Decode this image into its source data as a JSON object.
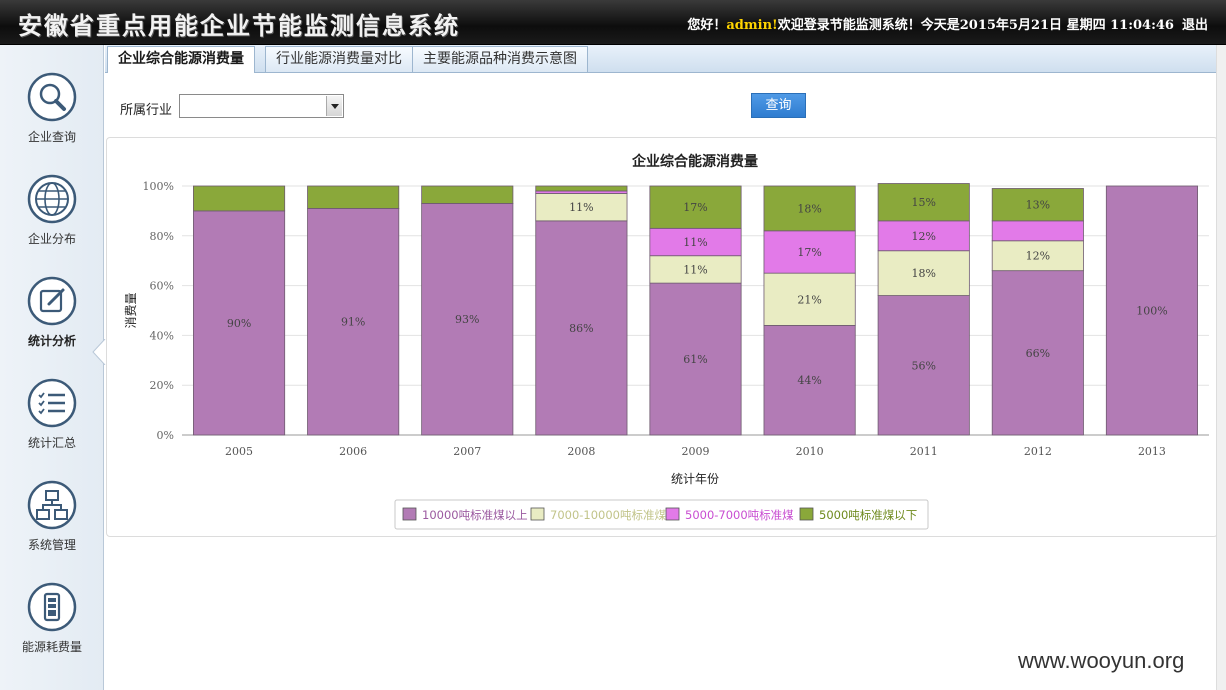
{
  "header": {
    "title": "安徽省重点用能企业节能监测信息系统",
    "greeting": "您好！",
    "username": "admin!",
    "welcome_text": "欢迎登录节能监测系统！今天是2015年5月21日 星期四 11:04:46",
    "logout_label": "退出"
  },
  "sidebar": {
    "items": [
      {
        "label": "企业查询",
        "icon": "magnifier-icon"
      },
      {
        "label": "企业分布",
        "icon": "globe-icon"
      },
      {
        "label": "统计分析",
        "icon": "chart-edit-icon",
        "active": true
      },
      {
        "label": "统计汇总",
        "icon": "checklist-icon"
      },
      {
        "label": "系统管理",
        "icon": "hierarchy-icon"
      },
      {
        "label": "能源耗费量",
        "icon": "battery-icon"
      }
    ]
  },
  "tabs": [
    {
      "label": "企业综合能源消费量",
      "active": true
    },
    {
      "label": "行业能源消费量对比",
      "active": false
    },
    {
      "label": "主要能源品种消费示意图",
      "active": false
    }
  ],
  "filter": {
    "industry_label": "所属行业",
    "industry_value": "",
    "query_label": "查询"
  },
  "chart_data": {
    "type": "bar",
    "stacked": "percent",
    "title": "企业综合能源消费量",
    "xlabel": "统计年份",
    "ylabel": "消费量",
    "ylim": [
      0,
      100
    ],
    "yticks": [
      "0%",
      "20%",
      "40%",
      "60%",
      "80%",
      "100%"
    ],
    "categories": [
      "2005",
      "2006",
      "2007",
      "2008",
      "2009",
      "2010",
      "2011",
      "2012",
      "2013"
    ],
    "series": [
      {
        "name": "10000吨标准煤以上",
        "color": "#b27bb5",
        "legend_text_color": "#9b5aa0",
        "values": [
          90,
          91,
          93,
          86,
          61,
          44,
          56,
          66,
          100
        ]
      },
      {
        "name": "7000-10000吨标准煤",
        "color": "#e9ecc3",
        "legend_text_color": "#c2c48a",
        "values": [
          0,
          0,
          0,
          11,
          11,
          21,
          18,
          12,
          0
        ]
      },
      {
        "name": "5000-7000吨标准煤",
        "color": "#e27ae8",
        "legend_text_color": "#c94ed2",
        "values": [
          0,
          0,
          0,
          1,
          11,
          17,
          12,
          8,
          0
        ]
      },
      {
        "name": "5000吨标准煤以下",
        "color": "#8aa83a",
        "legend_text_color": "#6f8a1e",
        "values": [
          10,
          9,
          7,
          2,
          17,
          18,
          15,
          13,
          0
        ]
      }
    ],
    "data_labels": [
      [
        "90%",
        "91%",
        "93%",
        "86%",
        "61%",
        "44%",
        "56%",
        "66%",
        "100%"
      ],
      [
        "",
        "",
        "",
        "11%",
        "11%",
        "21%",
        "18%",
        "12%",
        ""
      ],
      [
        "",
        "",
        "",
        "",
        "11%",
        "17%",
        "12%",
        "",
        ""
      ],
      [
        "",
        "",
        "",
        "",
        "17%",
        "18%",
        "15%",
        "13%",
        ""
      ]
    ],
    "grid": true,
    "legend_position": "bottom-center"
  },
  "watermark": "www.wooyun.org"
}
